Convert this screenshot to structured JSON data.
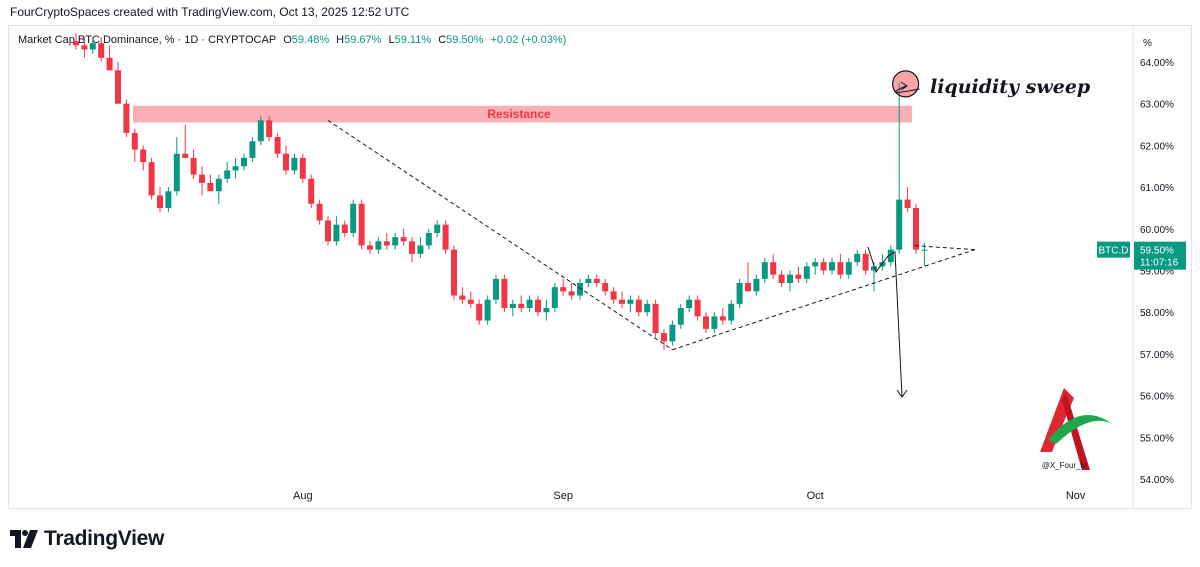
{
  "credit": "FourCryptoSpaces created with TradingView.com, Oct 13, 2025 12:52 UTC",
  "header": {
    "symbol": "Market Cap BTC Dominance, % · 1D · CRYPTOCAP",
    "o_label": "O",
    "o_val": "59.48%",
    "h_label": "H",
    "h_val": "59.67%",
    "l_label": "L",
    "l_val": "59.11%",
    "c_label": "C",
    "c_val": "59.50%",
    "change": "+0.02 (+0.03%)"
  },
  "branding": {
    "name": "TradingView",
    "watermark": "@X_Four_iv"
  },
  "colors": {
    "up": "#089981",
    "down": "#f23645",
    "resistance": "#f7a1a8"
  },
  "annotations": {
    "resistance": "Resistance",
    "sweep": "liquidity sweep"
  },
  "price_tag": {
    "symbol": "BTC.D",
    "price": "59.50%",
    "countdown": "11:07:16"
  },
  "chart_data": {
    "type": "candlestick",
    "title": "Market Cap BTC Dominance, % · 1D · CRYPTOCAP",
    "ylabel": "%",
    "ylim": [
      53.8,
      64.8
    ],
    "y_ticks": [
      "54.00%",
      "55.00%",
      "56.00%",
      "57.00%",
      "58.00%",
      "59.00%",
      "60.00%",
      "61.00%",
      "62.00%",
      "63.00%",
      "64.00%"
    ],
    "y_tick_values": [
      54,
      55,
      56,
      57,
      58,
      59,
      60,
      61,
      62,
      63,
      64
    ],
    "x_ticks": [
      {
        "label": "Aug",
        "i": 27
      },
      {
        "label": "Sep",
        "i": 58
      },
      {
        "label": "Oct",
        "i": 88
      },
      {
        "label": "Nov",
        "i": 119
      }
    ],
    "resistance_zone": [
      62.55,
      62.95
    ],
    "trendlines": [
      {
        "from": [
          30,
          62.6
        ],
        "to": [
          71,
          57.1
        ],
        "style": "dashed"
      },
      {
        "from": [
          71,
          57.1
        ],
        "to": [
          107,
          59.5
        ],
        "style": "dashed"
      }
    ],
    "candles": [
      {
        "o": 64.5,
        "h": 64.7,
        "l": 64.3,
        "c": 64.4
      },
      {
        "o": 64.4,
        "h": 64.6,
        "l": 64.1,
        "c": 64.3
      },
      {
        "o": 64.3,
        "h": 64.6,
        "l": 64.2,
        "c": 64.45
      },
      {
        "o": 64.45,
        "h": 64.6,
        "l": 64.0,
        "c": 64.1
      },
      {
        "o": 64.1,
        "h": 64.4,
        "l": 63.8,
        "c": 63.8
      },
      {
        "o": 63.8,
        "h": 64.0,
        "l": 63.0,
        "c": 63.0
      },
      {
        "o": 63.0,
        "h": 63.1,
        "l": 62.2,
        "c": 62.3
      },
      {
        "o": 62.3,
        "h": 62.4,
        "l": 61.6,
        "c": 61.9
      },
      {
        "o": 61.9,
        "h": 62.0,
        "l": 61.4,
        "c": 61.6
      },
      {
        "o": 61.6,
        "h": 61.7,
        "l": 60.7,
        "c": 60.8
      },
      {
        "o": 60.8,
        "h": 61.0,
        "l": 60.4,
        "c": 60.5
      },
      {
        "o": 60.5,
        "h": 61.0,
        "l": 60.4,
        "c": 60.9
      },
      {
        "o": 60.9,
        "h": 62.2,
        "l": 60.8,
        "c": 61.8
      },
      {
        "o": 61.8,
        "h": 62.5,
        "l": 61.7,
        "c": 61.7
      },
      {
        "o": 61.7,
        "h": 61.9,
        "l": 61.2,
        "c": 61.3
      },
      {
        "o": 61.3,
        "h": 61.5,
        "l": 60.8,
        "c": 61.1
      },
      {
        "o": 61.1,
        "h": 61.3,
        "l": 60.9,
        "c": 60.9
      },
      {
        "o": 60.9,
        "h": 61.3,
        "l": 60.6,
        "c": 61.2
      },
      {
        "o": 61.2,
        "h": 61.6,
        "l": 61.1,
        "c": 61.4
      },
      {
        "o": 61.4,
        "h": 61.7,
        "l": 61.2,
        "c": 61.5
      },
      {
        "o": 61.5,
        "h": 61.8,
        "l": 61.4,
        "c": 61.7
      },
      {
        "o": 61.7,
        "h": 62.2,
        "l": 61.6,
        "c": 62.1
      },
      {
        "o": 62.1,
        "h": 62.7,
        "l": 62.0,
        "c": 62.6
      },
      {
        "o": 62.6,
        "h": 62.7,
        "l": 62.1,
        "c": 62.2
      },
      {
        "o": 62.2,
        "h": 62.3,
        "l": 61.7,
        "c": 61.8
      },
      {
        "o": 61.8,
        "h": 62.0,
        "l": 61.3,
        "c": 61.4
      },
      {
        "o": 61.4,
        "h": 61.8,
        "l": 61.3,
        "c": 61.7
      },
      {
        "o": 61.7,
        "h": 61.8,
        "l": 61.1,
        "c": 61.2
      },
      {
        "o": 61.2,
        "h": 61.3,
        "l": 60.5,
        "c": 60.6
      },
      {
        "o": 60.6,
        "h": 60.7,
        "l": 60.1,
        "c": 60.2
      },
      {
        "o": 60.2,
        "h": 60.3,
        "l": 59.6,
        "c": 59.7
      },
      {
        "o": 59.7,
        "h": 60.3,
        "l": 59.6,
        "c": 60.1
      },
      {
        "o": 60.1,
        "h": 60.2,
        "l": 59.8,
        "c": 59.9
      },
      {
        "o": 59.9,
        "h": 60.7,
        "l": 59.8,
        "c": 60.6
      },
      {
        "o": 60.6,
        "h": 60.7,
        "l": 59.5,
        "c": 59.6
      },
      {
        "o": 59.6,
        "h": 59.7,
        "l": 59.4,
        "c": 59.5
      },
      {
        "o": 59.5,
        "h": 59.8,
        "l": 59.4,
        "c": 59.7
      },
      {
        "o": 59.7,
        "h": 59.9,
        "l": 59.5,
        "c": 59.6
      },
      {
        "o": 59.6,
        "h": 59.9,
        "l": 59.5,
        "c": 59.8
      },
      {
        "o": 59.8,
        "h": 60.0,
        "l": 59.6,
        "c": 59.7
      },
      {
        "o": 59.7,
        "h": 59.8,
        "l": 59.2,
        "c": 59.4
      },
      {
        "o": 59.4,
        "h": 59.8,
        "l": 59.3,
        "c": 59.6
      },
      {
        "o": 59.6,
        "h": 60.0,
        "l": 59.5,
        "c": 59.9
      },
      {
        "o": 59.9,
        "h": 60.2,
        "l": 59.8,
        "c": 60.1
      },
      {
        "o": 60.1,
        "h": 60.2,
        "l": 59.4,
        "c": 59.5
      },
      {
        "o": 59.5,
        "h": 59.6,
        "l": 58.3,
        "c": 58.4
      },
      {
        "o": 58.4,
        "h": 58.6,
        "l": 58.2,
        "c": 58.3
      },
      {
        "o": 58.3,
        "h": 58.5,
        "l": 58.1,
        "c": 58.2
      },
      {
        "o": 58.2,
        "h": 58.3,
        "l": 57.7,
        "c": 57.8
      },
      {
        "o": 57.8,
        "h": 58.4,
        "l": 57.7,
        "c": 58.3
      },
      {
        "o": 58.3,
        "h": 58.9,
        "l": 58.2,
        "c": 58.8
      },
      {
        "o": 58.8,
        "h": 58.9,
        "l": 58.0,
        "c": 58.1
      },
      {
        "o": 58.1,
        "h": 58.3,
        "l": 57.9,
        "c": 58.2
      },
      {
        "o": 58.2,
        "h": 58.4,
        "l": 58.0,
        "c": 58.1
      },
      {
        "o": 58.1,
        "h": 58.4,
        "l": 58.0,
        "c": 58.3
      },
      {
        "o": 58.3,
        "h": 58.4,
        "l": 57.9,
        "c": 58.0
      },
      {
        "o": 58.0,
        "h": 58.3,
        "l": 57.8,
        "c": 58.1
      },
      {
        "o": 58.1,
        "h": 58.7,
        "l": 58.0,
        "c": 58.6
      },
      {
        "o": 58.6,
        "h": 58.8,
        "l": 58.4,
        "c": 58.5
      },
      {
        "o": 58.5,
        "h": 58.7,
        "l": 58.3,
        "c": 58.4
      },
      {
        "o": 58.4,
        "h": 58.8,
        "l": 58.3,
        "c": 58.7
      },
      {
        "o": 58.7,
        "h": 58.9,
        "l": 58.6,
        "c": 58.8
      },
      {
        "o": 58.8,
        "h": 58.9,
        "l": 58.6,
        "c": 58.7
      },
      {
        "o": 58.7,
        "h": 58.8,
        "l": 58.4,
        "c": 58.5
      },
      {
        "o": 58.5,
        "h": 58.6,
        "l": 58.2,
        "c": 58.3
      },
      {
        "o": 58.3,
        "h": 58.5,
        "l": 58.1,
        "c": 58.2
      },
      {
        "o": 58.2,
        "h": 58.4,
        "l": 58.0,
        "c": 58.3
      },
      {
        "o": 58.3,
        "h": 58.4,
        "l": 57.9,
        "c": 58.0
      },
      {
        "o": 58.0,
        "h": 58.3,
        "l": 57.9,
        "c": 58.2
      },
      {
        "o": 58.2,
        "h": 58.3,
        "l": 57.4,
        "c": 57.5
      },
      {
        "o": 57.5,
        "h": 57.6,
        "l": 57.1,
        "c": 57.3
      },
      {
        "o": 57.3,
        "h": 57.8,
        "l": 57.2,
        "c": 57.7
      },
      {
        "o": 57.7,
        "h": 58.2,
        "l": 57.6,
        "c": 58.1
      },
      {
        "o": 58.1,
        "h": 58.4,
        "l": 58.0,
        "c": 58.3
      },
      {
        "o": 58.3,
        "h": 58.4,
        "l": 57.8,
        "c": 57.9
      },
      {
        "o": 57.9,
        "h": 58.0,
        "l": 57.5,
        "c": 57.6
      },
      {
        "o": 57.6,
        "h": 58.0,
        "l": 57.5,
        "c": 57.9
      },
      {
        "o": 57.9,
        "h": 58.1,
        "l": 57.7,
        "c": 57.8
      },
      {
        "o": 57.8,
        "h": 58.3,
        "l": 57.7,
        "c": 58.2
      },
      {
        "o": 58.2,
        "h": 58.8,
        "l": 58.1,
        "c": 58.7
      },
      {
        "o": 58.7,
        "h": 59.2,
        "l": 58.6,
        "c": 58.5
      },
      {
        "o": 58.5,
        "h": 58.9,
        "l": 58.4,
        "c": 58.8
      },
      {
        "o": 58.8,
        "h": 59.3,
        "l": 58.7,
        "c": 59.2
      },
      {
        "o": 59.2,
        "h": 59.4,
        "l": 58.8,
        "c": 58.9
      },
      {
        "o": 58.9,
        "h": 59.0,
        "l": 58.6,
        "c": 58.7
      },
      {
        "o": 58.7,
        "h": 59.0,
        "l": 58.5,
        "c": 58.9
      },
      {
        "o": 58.9,
        "h": 59.1,
        "l": 58.7,
        "c": 58.8
      },
      {
        "o": 58.8,
        "h": 59.2,
        "l": 58.7,
        "c": 59.1
      },
      {
        "o": 59.1,
        "h": 59.3,
        "l": 58.9,
        "c": 59.2
      },
      {
        "o": 59.2,
        "h": 59.3,
        "l": 58.9,
        "c": 59.0
      },
      {
        "o": 59.0,
        "h": 59.3,
        "l": 58.9,
        "c": 59.2
      },
      {
        "o": 59.2,
        "h": 59.4,
        "l": 58.8,
        "c": 58.9
      },
      {
        "o": 58.9,
        "h": 59.3,
        "l": 58.8,
        "c": 59.2
      },
      {
        "o": 59.2,
        "h": 59.5,
        "l": 59.1,
        "c": 59.4
      },
      {
        "o": 59.4,
        "h": 59.5,
        "l": 58.9,
        "c": 59.0
      },
      {
        "o": 59.0,
        "h": 59.2,
        "l": 58.5,
        "c": 59.1
      },
      {
        "o": 59.1,
        "h": 59.4,
        "l": 59.0,
        "c": 59.2
      },
      {
        "o": 59.2,
        "h": 59.6,
        "l": 59.1,
        "c": 59.5
      },
      {
        "o": 59.5,
        "h": 63.5,
        "l": 59.4,
        "c": 60.7
      },
      {
        "o": 60.7,
        "h": 61.0,
        "l": 60.4,
        "c": 60.5
      },
      {
        "o": 60.5,
        "h": 60.6,
        "l": 59.4,
        "c": 59.5
      },
      {
        "o": 59.48,
        "h": 59.67,
        "l": 59.11,
        "c": 59.5
      }
    ]
  }
}
